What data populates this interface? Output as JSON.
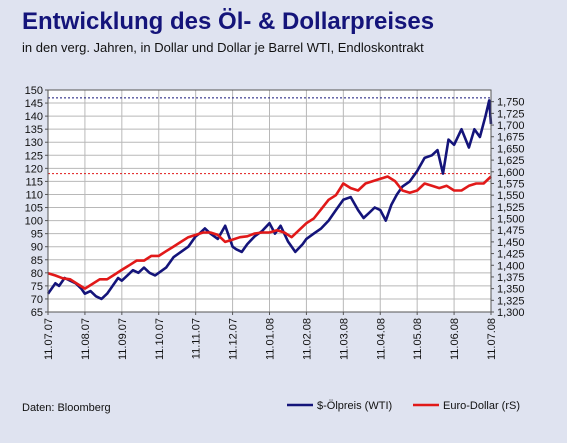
{
  "title": "Entwicklung des Öl- & Dollarpreises",
  "subtitle": "in den verg. Jahren, in Dollar und Dollar je Barrel WTI, Endloskontrakt",
  "source": "Daten: Bloomberg",
  "chart_data": {
    "type": "line",
    "grid": true,
    "legend_position": "bottom-right",
    "x_ticks": [
      "11.07.07",
      "11.08.07",
      "11.09.07",
      "11.10.07",
      "11.11.07",
      "11.12.07",
      "11.01.08",
      "11.02.08",
      "11.03.08",
      "11.04.08",
      "11.05.08",
      "11.06.08",
      "11.07.08"
    ],
    "y_left": {
      "range": [
        65,
        150
      ],
      "ticks": [
        "65",
        "70",
        "75",
        "80",
        "85",
        "90",
        "95",
        "100",
        "105",
        "110",
        "115",
        "120",
        "125",
        "130",
        "135",
        "140",
        "145",
        "150"
      ]
    },
    "y_right": {
      "range": [
        1.3,
        1.775
      ],
      "ticks": [
        "1,300",
        "1,325",
        "1,350",
        "1,375",
        "1,400",
        "1,425",
        "1,450",
        "1,475",
        "1,500",
        "1,525",
        "1,550",
        "1,575",
        "1,600",
        "1,625",
        "1,650",
        "1,675",
        "1,700",
        "1,725",
        "1,750"
      ]
    },
    "reference_lines": [
      {
        "axis": "left",
        "value": 147,
        "color": "#14147a"
      },
      {
        "axis": "left",
        "value": 118,
        "color": "#e11919"
      }
    ],
    "series": [
      {
        "name": "$-Ölpreis (WTI)",
        "axis": "left",
        "color": "#14147a",
        "x": [
          0,
          0.1,
          0.2,
          0.3,
          0.45,
          0.6,
          0.75,
          0.9,
          1.0,
          1.15,
          1.3,
          1.45,
          1.6,
          1.75,
          1.9,
          2.0,
          2.15,
          2.3,
          2.45,
          2.6,
          2.75,
          2.9,
          3.0,
          3.2,
          3.4,
          3.6,
          3.8,
          4.0,
          4.1,
          4.25,
          4.4,
          4.6,
          4.8,
          5.0,
          5.1,
          5.25,
          5.4,
          5.6,
          5.8,
          6.0,
          6.15,
          6.3,
          6.5,
          6.7,
          6.9,
          7.0,
          7.2,
          7.4,
          7.6,
          7.8,
          8.0,
          8.2,
          8.4,
          8.55,
          8.7,
          8.85,
          9.0,
          9.15,
          9.3,
          9.45,
          9.6,
          9.8,
          10.0,
          10.2,
          10.4,
          10.55,
          10.7,
          10.85,
          11.0,
          11.2,
          11.4,
          11.55,
          11.7,
          11.85,
          11.95,
          12.0
        ],
        "y": [
          72,
          74,
          76,
          75,
          78,
          77,
          76,
          74,
          72,
          73,
          71,
          70,
          72,
          75,
          78,
          77,
          79,
          81,
          80,
          82,
          80,
          79,
          80,
          82,
          86,
          88,
          90,
          94,
          95,
          97,
          95,
          93,
          98,
          90,
          89,
          88,
          91,
          94,
          96,
          99,
          95,
          98,
          92,
          88,
          91,
          93,
          95,
          97,
          100,
          104,
          108,
          109,
          104,
          101,
          103,
          105,
          104,
          100,
          106,
          110,
          113,
          115,
          119,
          124,
          125,
          127,
          118,
          131,
          129,
          135,
          128,
          135,
          132,
          140,
          146,
          137
        ]
      },
      {
        "name": "Euro-Dollar (rS)",
        "axis": "right",
        "color": "#e11919",
        "x": [
          0,
          0.2,
          0.4,
          0.6,
          0.8,
          1.0,
          1.2,
          1.4,
          1.6,
          1.8,
          2.0,
          2.2,
          2.4,
          2.6,
          2.8,
          3.0,
          3.2,
          3.4,
          3.6,
          3.8,
          4.0,
          4.2,
          4.4,
          4.6,
          4.8,
          5.0,
          5.2,
          5.4,
          5.6,
          5.8,
          6.0,
          6.2,
          6.4,
          6.6,
          6.8,
          7.0,
          7.2,
          7.4,
          7.6,
          7.8,
          8.0,
          8.2,
          8.4,
          8.6,
          8.8,
          9.0,
          9.2,
          9.4,
          9.6,
          9.8,
          10.0,
          10.2,
          10.4,
          10.6,
          10.8,
          11.0,
          11.2,
          11.4,
          11.6,
          11.8,
          12.0
        ],
        "y": [
          1.383,
          1.378,
          1.372,
          1.37,
          1.36,
          1.35,
          1.36,
          1.37,
          1.37,
          1.38,
          1.39,
          1.4,
          1.41,
          1.41,
          1.42,
          1.42,
          1.43,
          1.44,
          1.45,
          1.46,
          1.465,
          1.47,
          1.47,
          1.465,
          1.45,
          1.455,
          1.46,
          1.462,
          1.468,
          1.47,
          1.47,
          1.475,
          1.47,
          1.46,
          1.475,
          1.49,
          1.5,
          1.52,
          1.54,
          1.55,
          1.575,
          1.565,
          1.56,
          1.575,
          1.58,
          1.585,
          1.59,
          1.58,
          1.56,
          1.555,
          1.56,
          1.575,
          1.57,
          1.565,
          1.57,
          1.56,
          1.56,
          1.57,
          1.575,
          1.575,
          1.59
        ]
      }
    ]
  }
}
